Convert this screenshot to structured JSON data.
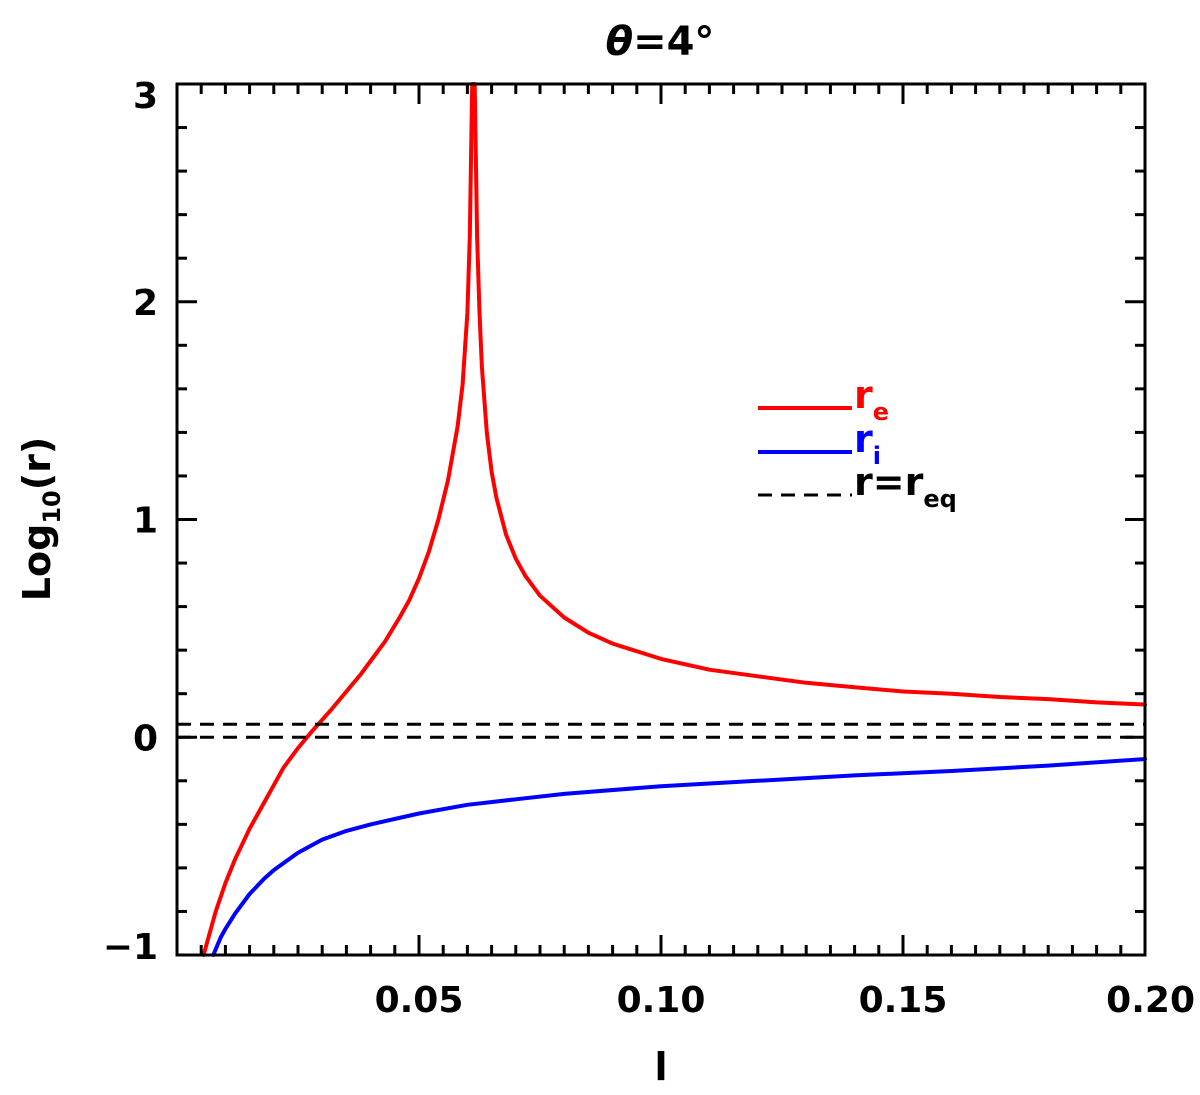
{
  "chart_data": {
    "type": "line",
    "title": {
      "symbol": "θ",
      "text": "=4°"
    },
    "xlabel": "l",
    "ylabel": {
      "base": "Log",
      "sub": "10",
      "arg": "(r)"
    },
    "xlim": [
      0.0,
      0.2
    ],
    "ylim": [
      -1.0,
      3.0
    ],
    "xticks": [
      {
        "value": 0.05,
        "label": "0.05"
      },
      {
        "value": 0.1,
        "label": "0.10"
      },
      {
        "value": 0.15,
        "label": "0.15"
      },
      {
        "value": 0.2,
        "label": "0.20"
      }
    ],
    "yticks": [
      {
        "value": -1,
        "label": "−1"
      },
      {
        "value": 0,
        "label": "0"
      },
      {
        "value": 1,
        "label": "1"
      },
      {
        "value": 2,
        "label": "2"
      },
      {
        "value": 3,
        "label": "3"
      }
    ],
    "series": [
      {
        "name": "r_e",
        "color": "#ff0000",
        "style": "solid",
        "x": [
          0.0055,
          0.008,
          0.01,
          0.012,
          0.015,
          0.018,
          0.02,
          0.022,
          0.025,
          0.028,
          0.03,
          0.032,
          0.035,
          0.038,
          0.04,
          0.043,
          0.046,
          0.048,
          0.05,
          0.052,
          0.054,
          0.056,
          0.058,
          0.059,
          0.06,
          0.0605,
          0.061
        ],
        "y": [
          -1.0,
          -0.8,
          -0.67,
          -0.56,
          -0.42,
          -0.3,
          -0.22,
          -0.14,
          -0.05,
          0.03,
          0.08,
          0.13,
          0.21,
          0.29,
          0.35,
          0.44,
          0.55,
          0.63,
          0.73,
          0.85,
          1.0,
          1.18,
          1.43,
          1.62,
          1.95,
          2.3,
          3.05
        ]
      },
      {
        "name": "r_e",
        "color": "#ff0000",
        "style": "solid",
        "x": [
          0.0615,
          0.062,
          0.0625,
          0.063,
          0.064,
          0.065,
          0.066,
          0.068,
          0.07,
          0.072,
          0.075,
          0.08,
          0.085,
          0.09,
          0.1,
          0.11,
          0.12,
          0.13,
          0.14,
          0.15,
          0.16,
          0.17,
          0.18,
          0.19,
          0.2
        ],
        "y": [
          3.05,
          2.3,
          1.95,
          1.7,
          1.4,
          1.22,
          1.1,
          0.93,
          0.82,
          0.74,
          0.65,
          0.55,
          0.48,
          0.43,
          0.36,
          0.31,
          0.28,
          0.25,
          0.23,
          0.21,
          0.2,
          0.185,
          0.175,
          0.16,
          0.15
        ]
      },
      {
        "name": "r_i",
        "color": "#0000ff",
        "style": "solid",
        "x": [
          0.0075,
          0.009,
          0.01,
          0.012,
          0.015,
          0.018,
          0.02,
          0.025,
          0.03,
          0.035,
          0.04,
          0.05,
          0.06,
          0.07,
          0.08,
          0.1,
          0.12,
          0.14,
          0.16,
          0.18,
          0.2
        ],
        "y": [
          -1.0,
          -0.92,
          -0.88,
          -0.81,
          -0.72,
          -0.65,
          -0.61,
          -0.53,
          -0.47,
          -0.43,
          -0.4,
          -0.35,
          -0.31,
          -0.285,
          -0.26,
          -0.225,
          -0.2,
          -0.175,
          -0.155,
          -0.13,
          -0.1
        ]
      },
      {
        "name": "r = r_eq",
        "color": "#000000",
        "style": "dashed",
        "x": [
          0.0,
          0.2
        ],
        "y": [
          0.0,
          0.0
        ]
      },
      {
        "name": "r = r_eq",
        "color": "#000000",
        "style": "dashed",
        "x": [
          0.0,
          0.2
        ],
        "y": [
          0.06,
          0.06
        ]
      }
    ],
    "legend": {
      "placement": "right",
      "entries": [
        {
          "base": "r",
          "sub": "e",
          "color": "#ff0000",
          "style": "solid"
        },
        {
          "base": "r",
          "sub": "i",
          "color": "#0000ff",
          "style": "solid"
        },
        {
          "prefix": "r=",
          "base": "r",
          "sub": "eq",
          "color": "#000000",
          "style": "dashed"
        }
      ]
    }
  }
}
